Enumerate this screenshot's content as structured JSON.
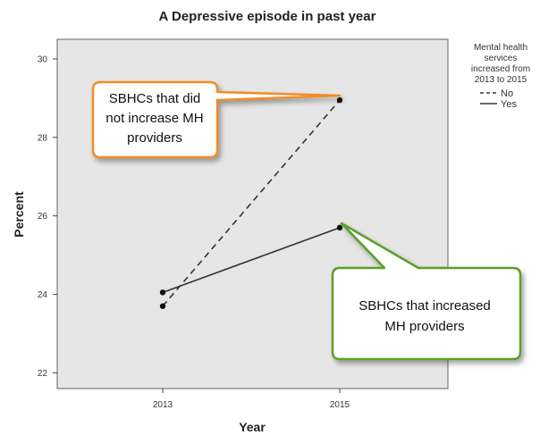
{
  "chart_data": {
    "type": "line",
    "title": "A  Depressive episode in past year",
    "xlabel": "Year",
    "ylabel": "Percent",
    "x": [
      "2013",
      "2015"
    ],
    "ylim": [
      21.6,
      30.5
    ],
    "yticks": [
      "30",
      "28",
      "26",
      "24",
      "22"
    ],
    "grid": false,
    "legend": {
      "title_lines": [
        "Mental health",
        "services",
        "increased from",
        "2013 to 2015"
      ],
      "placement": "right",
      "entries": [
        {
          "label": "No",
          "style": "dashed"
        },
        {
          "label": "Yes",
          "style": "solid"
        }
      ]
    },
    "series": [
      {
        "name": "No",
        "style": "dashed",
        "values": [
          23.7,
          28.95
        ]
      },
      {
        "name": "Yes",
        "style": "solid",
        "values": [
          24.05,
          25.7
        ]
      }
    ],
    "annotations": [
      {
        "text_lines": [
          "SBHCs that did",
          "not increase MH",
          "providers"
        ],
        "color": "#F28C28"
      },
      {
        "text_lines": [
          "SBHCs that increased",
          "MH providers"
        ],
        "color": "#5AA02C"
      }
    ]
  }
}
